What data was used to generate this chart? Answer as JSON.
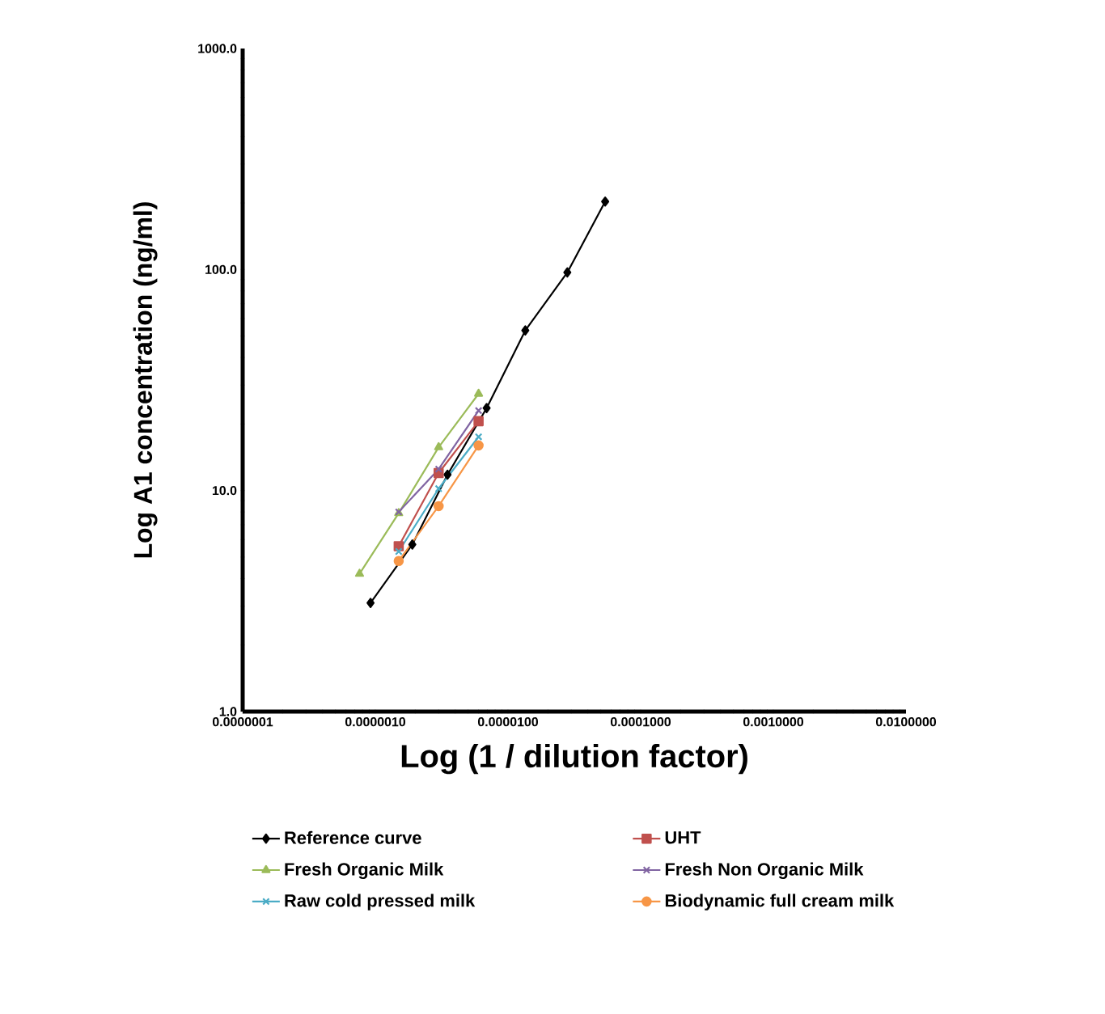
{
  "chart_data": {
    "type": "line",
    "xlabel": "Log (1 / dilution factor)",
    "ylabel": "Log A1 concentration (ng/ml)",
    "log": "xy",
    "xlim": [
      1e-07,
      0.01
    ],
    "ylim": [
      1,
      1000
    ],
    "xticks": [
      {
        "value": 1e-07,
        "label": "0.0000001"
      },
      {
        "value": 1e-06,
        "label": "0.0000010"
      },
      {
        "value": 1e-05,
        "label": "0.0000100"
      },
      {
        "value": 0.0001,
        "label": "0.0001000"
      },
      {
        "value": 0.001,
        "label": "0.0010000"
      },
      {
        "value": 0.01,
        "label": "0.0100000"
      }
    ],
    "yticks": [
      {
        "value": 1,
        "label": "1.0"
      },
      {
        "value": 10,
        "label": "10.0"
      },
      {
        "value": 100,
        "label": "100.0"
      },
      {
        "value": 1000,
        "label": "1000.0"
      }
    ],
    "grid": false,
    "legend": "bottom",
    "series": [
      {
        "name": "Reference curve",
        "color": "#000000",
        "marker": "diamond",
        "x": [
          9.2e-07,
          1.9e-06,
          3.5e-06,
          6.9e-06,
          1.35e-05,
          2.8e-05,
          5.4e-05
        ],
        "values": [
          3.1,
          5.7,
          11.8,
          23.6,
          53,
          97,
          203
        ]
      },
      {
        "name": "UHT",
        "color": "#c0504d",
        "marker": "square",
        "x": [
          1.5e-06,
          3e-06,
          6e-06
        ],
        "values": [
          5.6,
          12,
          20.6
        ]
      },
      {
        "name": "Fresh Organic Milk",
        "color": "#9bbb59",
        "marker": "triangle",
        "x": [
          7.6e-07,
          1.5e-06,
          3e-06,
          6e-06
        ],
        "values": [
          4.2,
          7.9,
          15.7,
          27.4
        ]
      },
      {
        "name": "Fresh Non Organic Milk",
        "color": "#8064a2",
        "marker": "cross",
        "x": [
          1.5e-06,
          3e-06,
          6e-06
        ],
        "values": [
          8,
          12.5,
          23
        ]
      },
      {
        "name": "Raw cold pressed milk",
        "color": "#4bacc6",
        "marker": "cross",
        "x": [
          1.5e-06,
          3e-06,
          6e-06
        ],
        "values": [
          5.3,
          10.2,
          17.5
        ]
      },
      {
        "name": "Biodynamic full cream milk",
        "color": "#f79646",
        "marker": "circle",
        "x": [
          1.5e-06,
          3e-06,
          6e-06
        ],
        "values": [
          4.8,
          8.5,
          16
        ]
      }
    ]
  }
}
